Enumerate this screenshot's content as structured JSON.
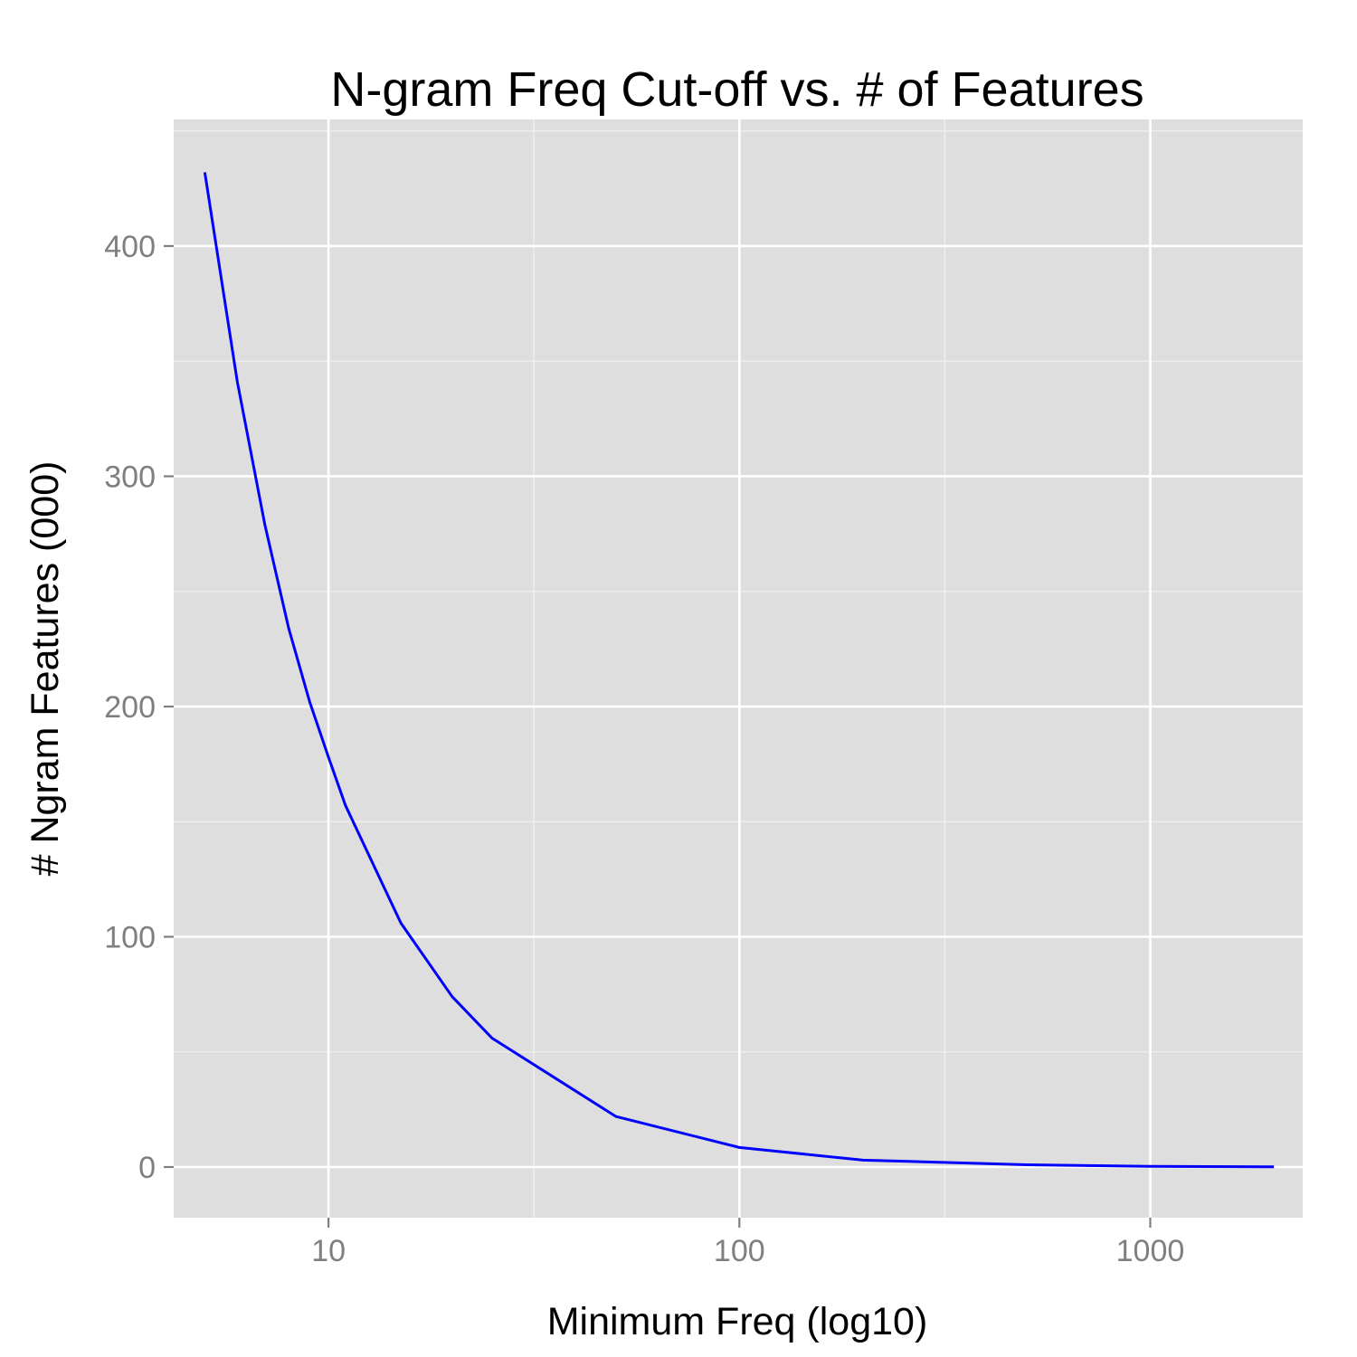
{
  "chart_data": {
    "type": "line",
    "title": "N-gram Freq Cut-off vs. # of Features",
    "xlabel": "Minimum Freq (log10)",
    "ylabel": "# Ngram Features (000)",
    "x_scale": "log10",
    "xlim": [
      4.2,
      2350
    ],
    "ylim": [
      -22,
      455
    ],
    "x_ticks": [
      10,
      100,
      1000
    ],
    "x_tick_labels": [
      "10",
      "100",
      "1000"
    ],
    "y_ticks": [
      0,
      100,
      200,
      300,
      400
    ],
    "y_tick_labels": [
      "0",
      "100",
      "200",
      "300",
      "400"
    ],
    "grid": true,
    "background": "#dedede",
    "series": [
      {
        "color": "#0000ff",
        "x": [
          5,
          6,
          7,
          8,
          9,
          10,
          11,
          15,
          20,
          25,
          50,
          100,
          200,
          500,
          1000,
          2000
        ],
        "y": [
          432,
          341,
          279,
          234,
          202,
          178,
          157,
          106,
          74,
          56,
          22,
          8.5,
          3,
          1,
          0.3,
          0.1
        ]
      }
    ]
  }
}
